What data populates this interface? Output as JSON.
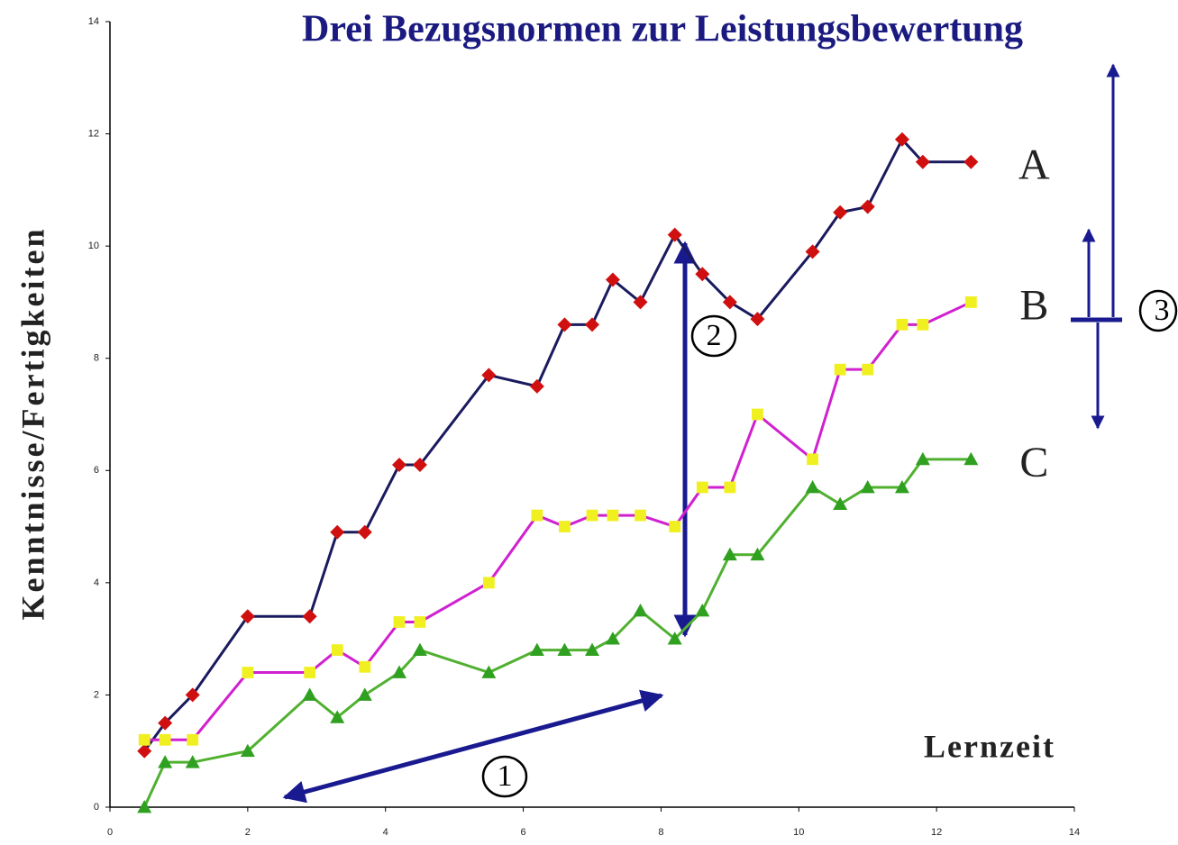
{
  "chart_data": {
    "type": "line",
    "title": "Drei Bezugsnormen zur Leistungsbewertung",
    "xlabel": "Lernzeit",
    "ylabel": "Kenntnisse/Fertigkeiten",
    "x": [
      0.5,
      0.8,
      1.2,
      2.0,
      2.9,
      3.3,
      3.7,
      4.2,
      4.5,
      5.5,
      6.2,
      6.6,
      7.0,
      7.3,
      7.7,
      8.2,
      8.6,
      9.0,
      9.4,
      10.2,
      10.6,
      11.0,
      11.5,
      11.8,
      12.5
    ],
    "series": [
      {
        "name": "A",
        "color": "#1a1a5e",
        "marker_color": "#d01010",
        "marker": "diamond",
        "values": [
          1.0,
          1.5,
          2.0,
          3.4,
          3.4,
          4.9,
          4.9,
          6.1,
          6.1,
          7.7,
          7.5,
          8.6,
          8.6,
          9.4,
          9.0,
          10.2,
          9.5,
          9.0,
          8.7,
          9.9,
          10.6,
          10.7,
          11.9,
          11.5,
          11.5
        ]
      },
      {
        "name": "B",
        "color": "#d020d0",
        "marker_color": "#f0f020",
        "marker": "square",
        "values": [
          1.2,
          1.2,
          1.2,
          2.4,
          2.4,
          2.8,
          2.5,
          3.3,
          3.3,
          4.0,
          5.2,
          5.0,
          5.2,
          5.2,
          5.2,
          5.0,
          5.7,
          5.7,
          7.0,
          6.2,
          7.8,
          7.8,
          8.6,
          8.6,
          9.0
        ]
      },
      {
        "name": "C",
        "color": "#50b030",
        "marker_color": "#30a020",
        "marker": "triangle",
        "values": [
          0,
          0.8,
          0.8,
          1.0,
          2.0,
          1.6,
          2.0,
          2.4,
          2.8,
          2.4,
          2.8,
          2.8,
          2.8,
          3.0,
          3.5,
          3.0,
          3.5,
          4.5,
          4.5,
          5.7,
          5.4,
          5.7,
          5.7,
          6.2,
          6.2
        ]
      }
    ],
    "annotations": [
      "1",
      "2",
      "3"
    ],
    "xlim": [
      0,
      14
    ],
    "xticks": [
      0,
      2,
      4,
      6,
      8,
      10,
      12,
      14
    ],
    "ylim": [
      0,
      14
    ],
    "yticks": [
      0,
      2,
      4,
      6,
      8,
      10,
      12,
      14
    ]
  }
}
